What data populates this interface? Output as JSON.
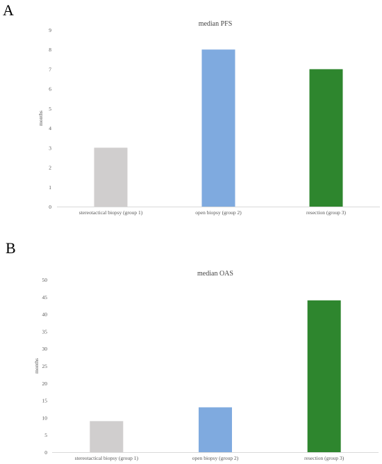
{
  "panels": [
    {
      "letter": "A"
    },
    {
      "letter": "B"
    }
  ],
  "chart_data": [
    {
      "type": "bar",
      "title": "median PFS",
      "xlabel": "",
      "ylabel": "months",
      "categories": [
        "stereotactical biopsy (group 1)",
        "open biopsy (group 2)",
        "resection (group 3)"
      ],
      "values": [
        3,
        8,
        7
      ],
      "colors": [
        "#d0cece",
        "#7faadf",
        "#2e862e"
      ],
      "ylim": [
        0,
        9
      ],
      "yticks": [
        0,
        1,
        2,
        3,
        4,
        5,
        6,
        7,
        8,
        9
      ],
      "grid": false,
      "legend": "none"
    },
    {
      "type": "bar",
      "title": "median OAS",
      "xlabel": "",
      "ylabel": "months",
      "categories": [
        "stereotactical biopsy (group 1)",
        "open biopsy (group 2)",
        "resection (group 3)"
      ],
      "values": [
        9,
        13,
        44
      ],
      "colors": [
        "#d0cece",
        "#7faadf",
        "#2e862e"
      ],
      "ylim": [
        0,
        50
      ],
      "yticks": [
        0,
        5,
        10,
        15,
        20,
        25,
        30,
        35,
        40,
        45,
        50
      ],
      "grid": false,
      "legend": "none"
    }
  ]
}
